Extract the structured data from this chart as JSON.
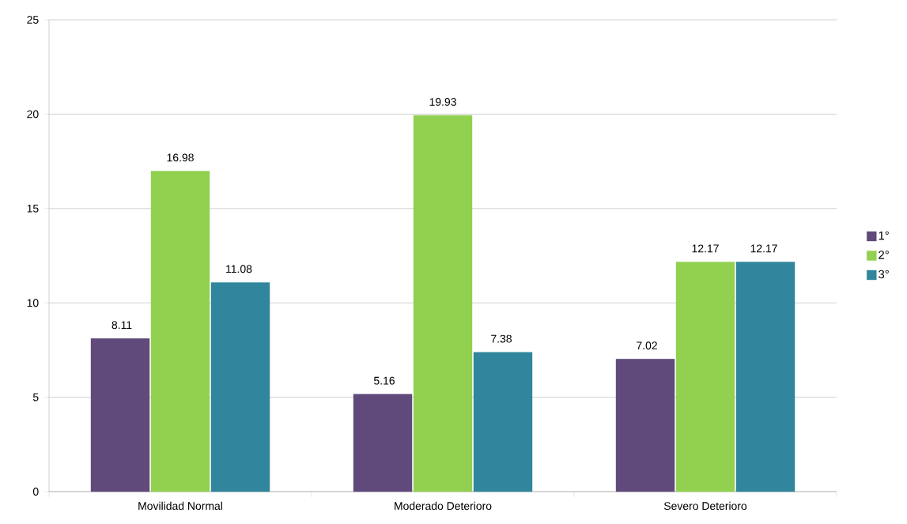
{
  "chart_data": {
    "type": "bar",
    "categories": [
      "Movilidad Normal",
      "Moderado Deterioro",
      "Severo Deterioro"
    ],
    "series": [
      {
        "name": "1°",
        "color": "#604a7b",
        "values": [
          8.11,
          5.16,
          7.02
        ]
      },
      {
        "name": "2°",
        "color": "#92d050",
        "values": [
          16.98,
          19.93,
          12.17
        ]
      },
      {
        "name": "3°",
        "color": "#31859c",
        "values": [
          11.08,
          7.38,
          12.17
        ]
      }
    ],
    "ylim": [
      0,
      25
    ],
    "yticks": [
      0,
      5,
      10,
      15,
      20,
      25
    ],
    "grid": "y",
    "legend": "right",
    "data_labels": true
  }
}
